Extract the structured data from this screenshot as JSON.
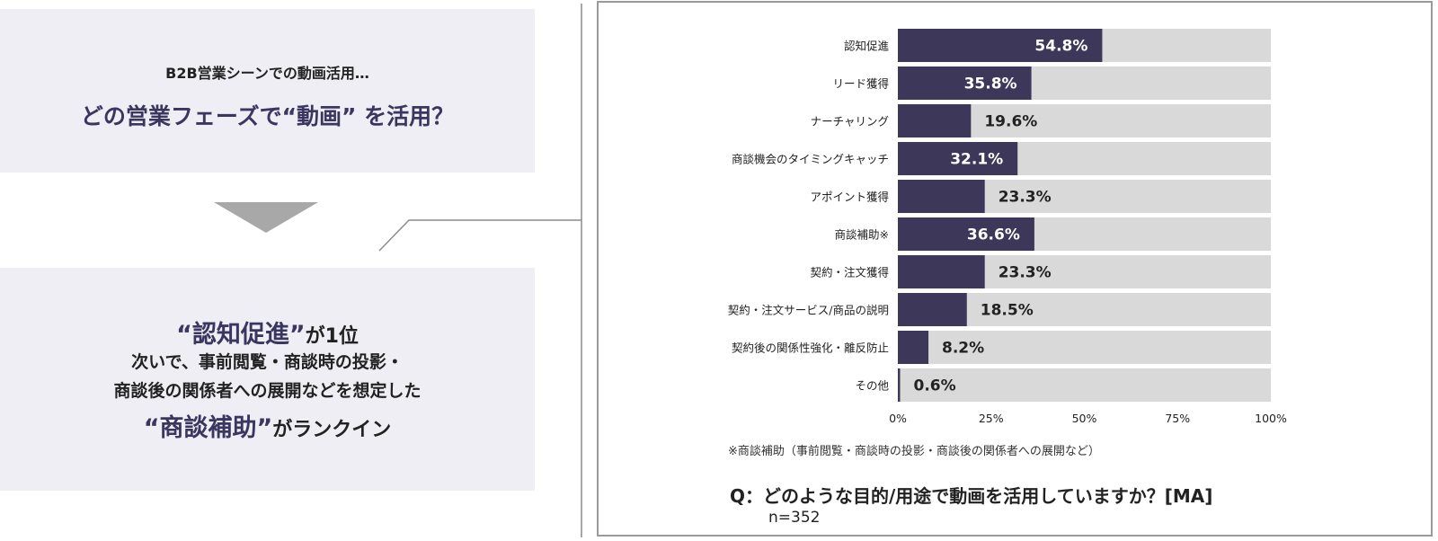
{
  "left_panel": {
    "subtitle": "B2B営業シーンでの動画活用…",
    "question_title": "どの営業フェーズで“動画” を活用？",
    "conclusion": {
      "line1_highlight": "“認知促進”",
      "line1_rest": "が1位",
      "line2": "次いで、事前閲覧・商談時の投影・",
      "line3": "商談後の関係者への展開などを想定した",
      "line4_highlight": "“商談補助”",
      "line4_rest": "がランクイン"
    }
  },
  "chart_data": {
    "type": "bar",
    "orientation": "horizontal",
    "categories": [
      "認知促進",
      "リード獲得",
      "ナーチャリング",
      "商談機会のタイミングキャッチ",
      "アポイント獲得",
      "商談補助※",
      "契約・注文獲得",
      "契約・注文サービス/商品の説明",
      "契約後の関係性強化・離反防止",
      "その他"
    ],
    "values": [
      54.8,
      35.8,
      19.6,
      32.1,
      23.3,
      36.6,
      23.3,
      18.5,
      8.2,
      0.6
    ],
    "data_labels": [
      "54.8%",
      "35.8%",
      "19.6%",
      "32.1%",
      "23.3%",
      "36.6%",
      "23.3%",
      "18.5%",
      "8.2%",
      "0.6%"
    ],
    "label_inside": [
      true,
      true,
      false,
      true,
      false,
      true,
      false,
      false,
      false,
      false
    ],
    "xlim": [
      0,
      100
    ],
    "x_ticks": [
      0,
      25,
      50,
      75,
      100
    ],
    "x_tick_labels": [
      "0%",
      "25%",
      "50%",
      "75%",
      "100%"
    ],
    "bar_color": "#3d3759",
    "track_color": "#d9d9d9",
    "grid": false,
    "note": "※商談補助（事前閲覧・商談時の投影・商談後の関係者への展開など）",
    "question": "Q：どのような目的/用途で動画を活用していますか？[MA]",
    "sample_size": "n=352"
  }
}
